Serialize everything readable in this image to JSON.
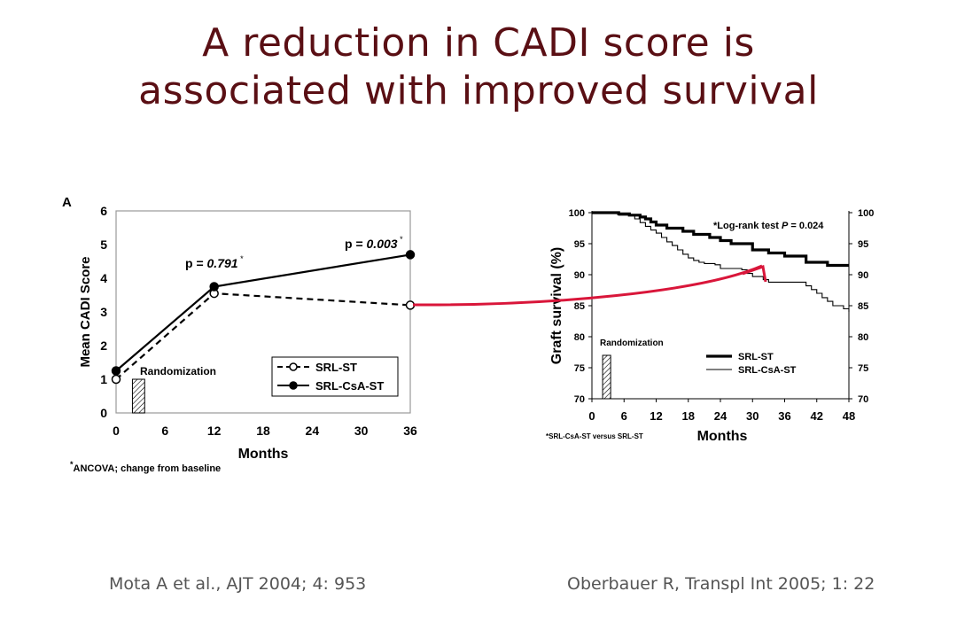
{
  "title": {
    "line1": "A reduction in CADI score is",
    "line2": "associated with improved survival"
  },
  "citations": {
    "left": "Mota A et al., AJT 2004; 4: 953",
    "right": "Oberbauer R, Transpl Int 2005; 1: 22"
  },
  "colors": {
    "title": "#5a0f14",
    "arrow": "#d9163a",
    "citation": "#555555"
  },
  "chart_data": [
    {
      "type": "line",
      "panel_label": "A",
      "xlabel": "Months",
      "ylabel": "Mean CADI Score",
      "xlim": [
        0,
        36
      ],
      "ylim": [
        0,
        6
      ],
      "xticks": [
        0,
        6,
        12,
        18,
        24,
        30,
        36
      ],
      "yticks": [
        0,
        1,
        2,
        3,
        4,
        5,
        6
      ],
      "x": [
        0,
        12,
        36
      ],
      "series": [
        {
          "name": "SRL-ST",
          "values": [
            1.0,
            3.55,
            3.2
          ],
          "style": "dashed",
          "marker": "open-circle"
        },
        {
          "name": "SRL-CsA-ST",
          "values": [
            1.25,
            3.75,
            4.7
          ],
          "style": "solid",
          "marker": "filled-circle"
        }
      ],
      "annotations": [
        {
          "text": "p = 0.791",
          "sup": "*",
          "x": 12
        },
        {
          "text": "p = 0.003",
          "sup": "*",
          "x": 36
        }
      ],
      "randomization": {
        "label": "Randomization",
        "x_from": 2,
        "x_to": 3.5,
        "y": 1.0
      },
      "footnote": {
        "sup": "*",
        "text": "ANCOVA; change from baseline"
      },
      "legend_placement": "bottom-right",
      "grid": false
    },
    {
      "type": "line",
      "step": true,
      "xlabel": "Months",
      "ylabel": "Graft survival (%)",
      "xlim": [
        0,
        48
      ],
      "ylim": [
        70,
        100
      ],
      "xticks": [
        0,
        6,
        12,
        18,
        24,
        30,
        36,
        42,
        48
      ],
      "yticks": [
        70,
        75,
        80,
        85,
        90,
        95,
        100
      ],
      "series": [
        {
          "name": "SRL-ST",
          "style": "thick",
          "x": [
            0,
            5,
            7,
            9,
            10,
            11,
            12,
            14,
            17,
            19,
            22,
            24,
            26,
            30,
            33,
            36,
            40,
            44,
            48
          ],
          "y": [
            100,
            99.8,
            99.6,
            99.3,
            99,
            98.5,
            98,
            97.5,
            97,
            96.5,
            96,
            95.5,
            95,
            94,
            93.5,
            93,
            92,
            91.5,
            91.5
          ]
        },
        {
          "name": "SRL-CsA-ST",
          "style": "thin",
          "x": [
            0,
            5,
            8,
            9,
            10,
            11,
            12,
            13,
            14,
            15,
            16,
            17,
            18,
            19,
            20,
            21,
            23,
            24,
            28,
            29,
            30,
            32,
            33,
            36,
            40,
            41,
            42,
            43,
            44,
            45,
            47,
            48
          ],
          "y": [
            100,
            99.6,
            99,
            98.4,
            97.8,
            97.2,
            96.7,
            96,
            95.3,
            94.7,
            94,
            93.3,
            92.7,
            92.3,
            92,
            91.8,
            91.6,
            91,
            90.8,
            90.2,
            89.7,
            89.2,
            88.8,
            88.8,
            88.2,
            87.6,
            87,
            86.3,
            85.7,
            85,
            84.5,
            84
          ]
        }
      ],
      "annotation": {
        "text": "*Log-rank test ",
        "p_label": "P",
        "p_value": " = 0.024"
      },
      "randomization": {
        "label": "Randomization",
        "x_from": 2,
        "x_to": 3.5,
        "y": 77
      },
      "footnote": "*SRL-CsA-ST versus SRL-ST",
      "legend_placement": "bottom-right",
      "grid": false
    }
  ]
}
